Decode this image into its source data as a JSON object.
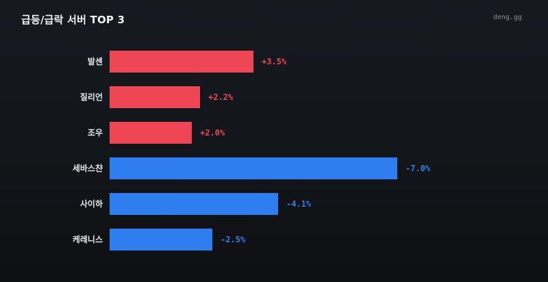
{
  "header": {
    "title": "급등/급락 서버 TOP 3",
    "brand": "deng.gg"
  },
  "colors": {
    "positive": "#ef4655",
    "negative": "#2f7ef0"
  },
  "chart_data": {
    "type": "bar",
    "orientation": "horizontal",
    "title": "급등/급락 서버 TOP 3",
    "categories": [
      "발센",
      "질리언",
      "조우",
      "세바스챤",
      "사이하",
      "케레니스"
    ],
    "values": [
      3.5,
      2.2,
      2.0,
      -7.0,
      -4.1,
      -2.5
    ],
    "value_labels": [
      "+3.5%",
      "+2.2%",
      "+2.0%",
      "-7.0%",
      "-4.1%",
      "-2.5%"
    ],
    "unit": "%",
    "grid": false,
    "legend": "none"
  }
}
